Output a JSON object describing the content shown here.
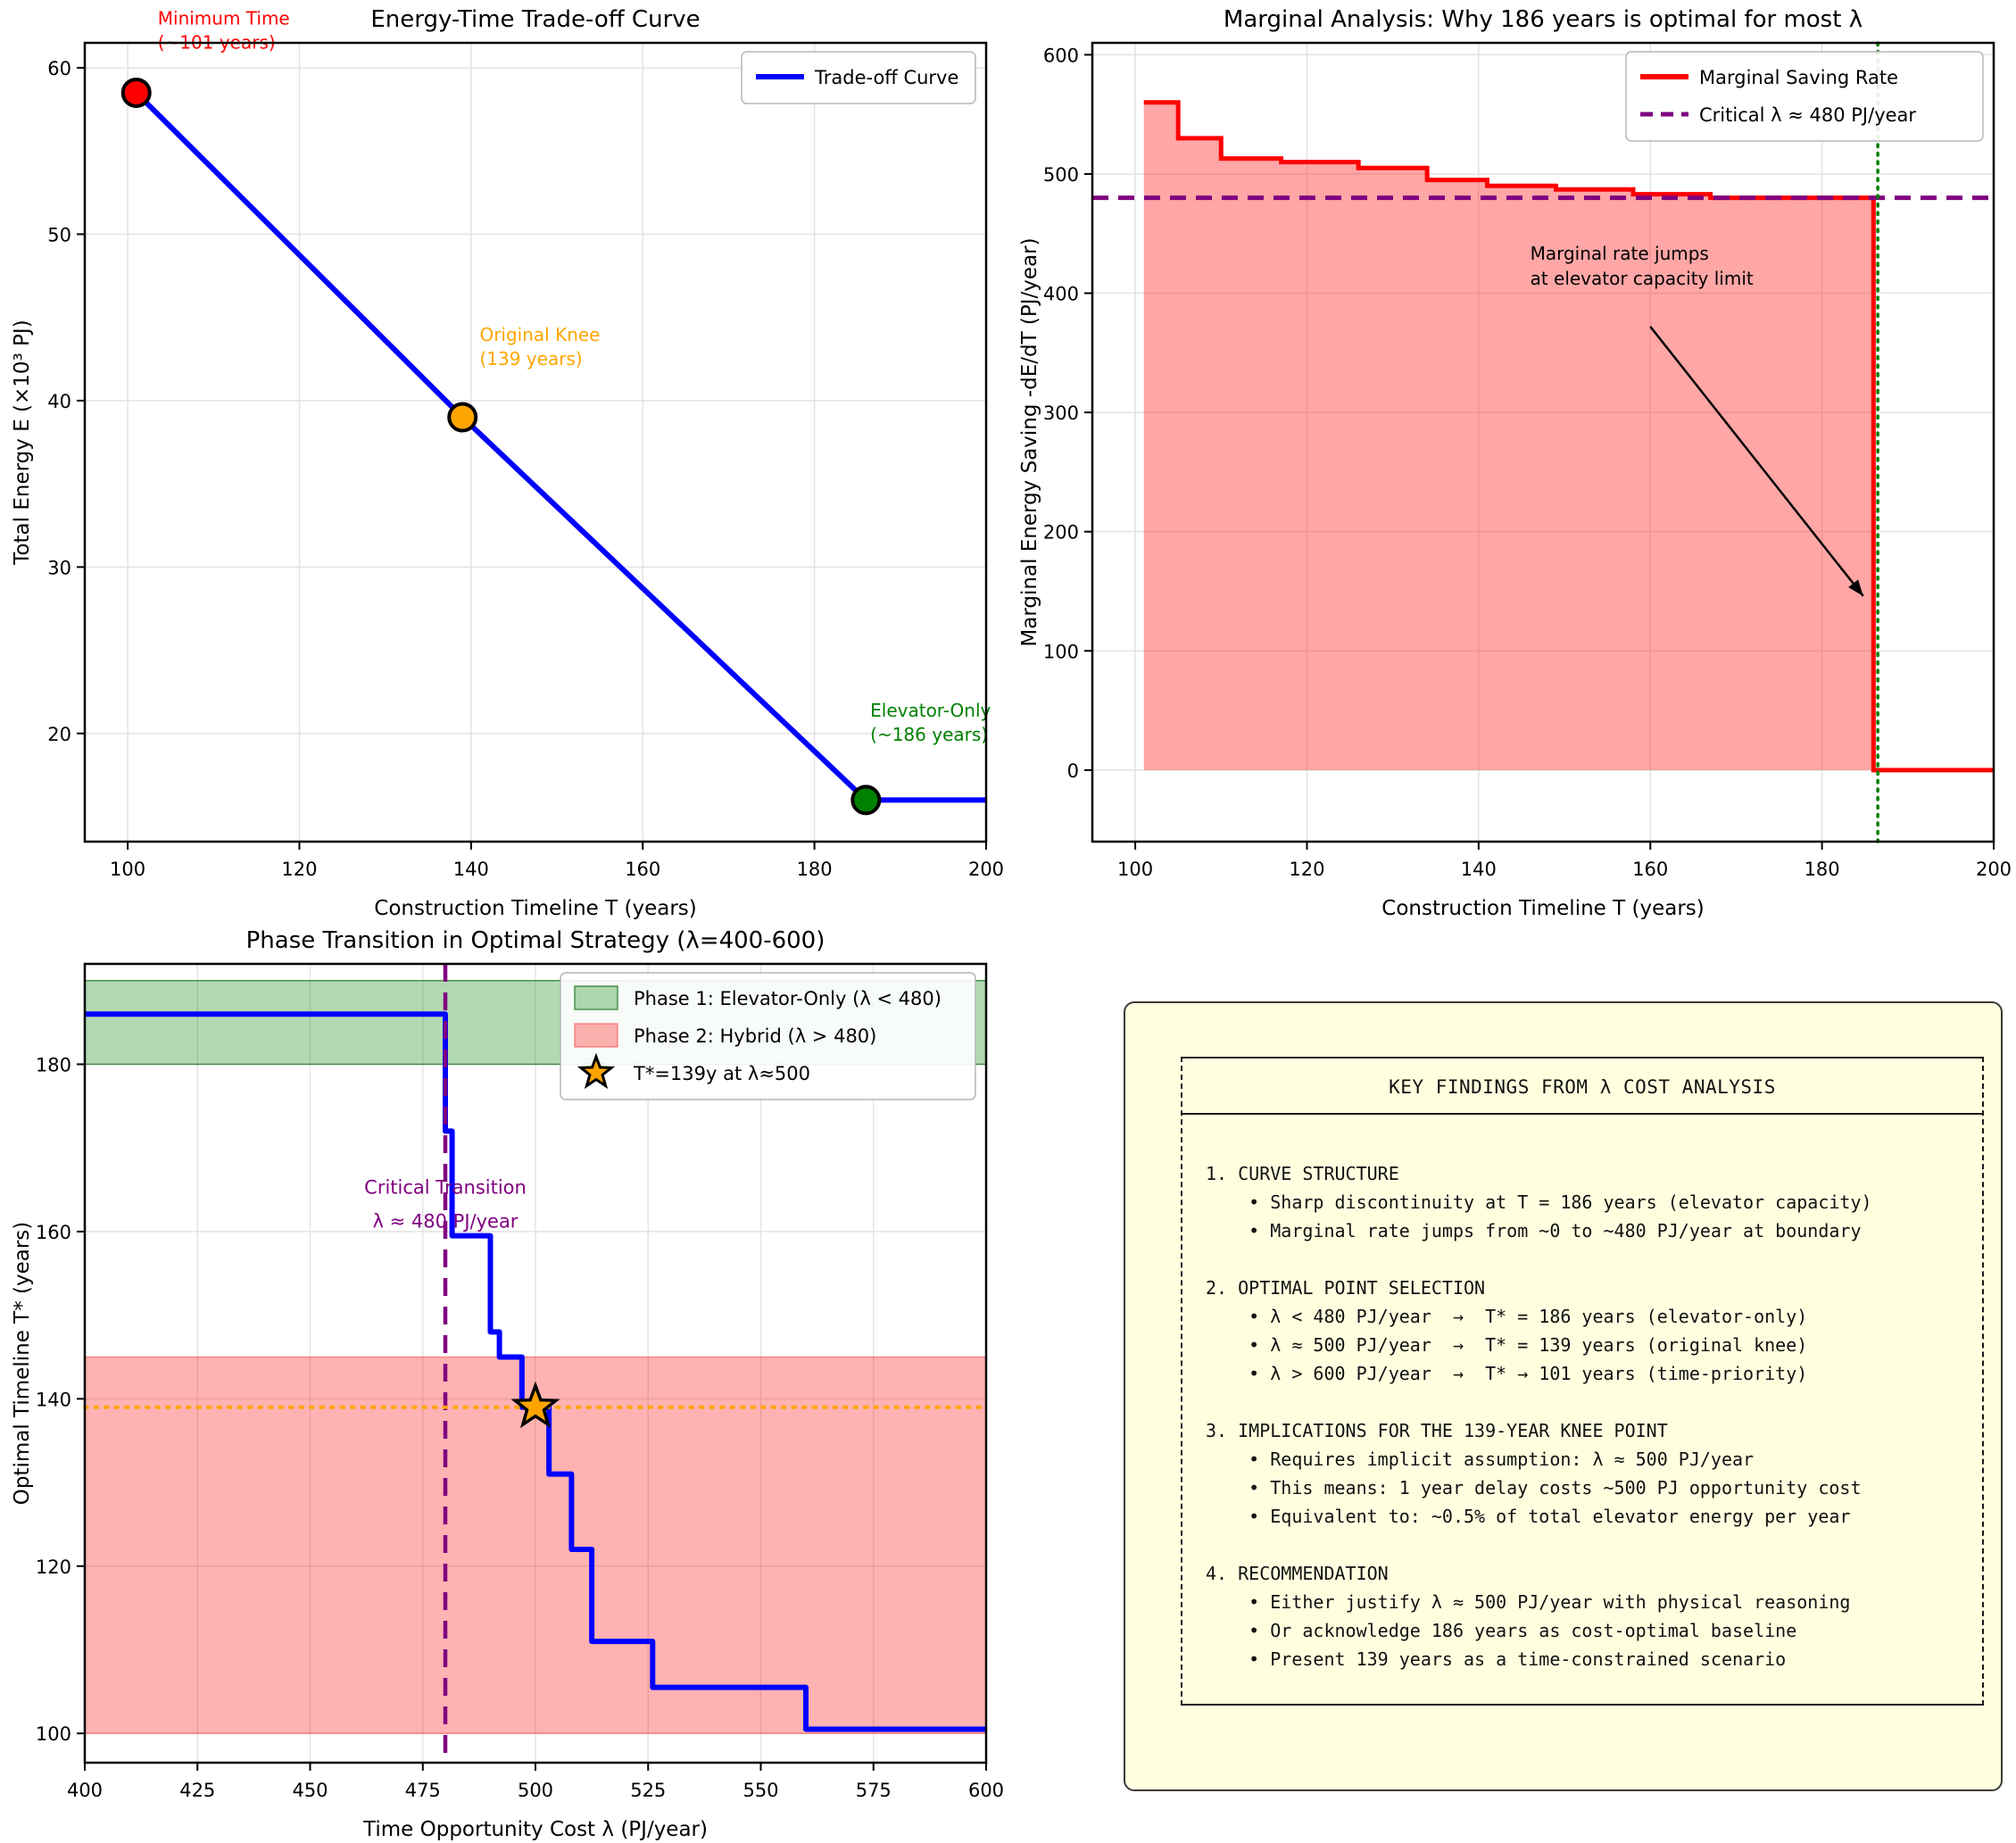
{
  "page": {
    "background": "#ffffff"
  },
  "findings": {
    "title": "KEY FINDINGS FROM λ COST ANALYSIS",
    "panel_bg": "#ffffe0",
    "body_lines": [
      "",
      "1. CURVE STRUCTURE",
      "    • Sharp discontinuity at T = 186 years (elevator capacity)",
      "    • Marginal rate jumps from ~0 to ~480 PJ/year at boundary",
      "",
      "2. OPTIMAL POINT SELECTION",
      "    • λ < 480 PJ/year  →  T* = 186 years (elevator-only)",
      "    • λ ≈ 500 PJ/year  →  T* = 139 years (original knee)",
      "    • λ > 600 PJ/year  →  T* → 101 years (time-priority)",
      "",
      "3. IMPLICATIONS FOR THE 139-YEAR KNEE POINT",
      "    • Requires implicit assumption: λ ≈ 500 PJ/year",
      "    • This means: 1 year delay costs ~500 PJ opportunity cost",
      "    • Equivalent to: ~0.5% of total elevator energy per year",
      "",
      "4. RECOMMENDATION",
      "    • Either justify λ ≈ 500 PJ/year with physical reasoning",
      "    • Or acknowledge 186 years as cost-optimal baseline",
      "    • Present 139 years as a time-constrained scenario"
    ]
  },
  "chart_data": [
    {
      "type": "line",
      "title": "Energy-Time Trade-off Curve",
      "xlabel": "Construction Timeline T (years)",
      "ylabel": "Total Energy E (×10³ PJ)",
      "xlim": [
        95,
        200
      ],
      "ylim": [
        13.5,
        61.5
      ],
      "xticks": [
        100,
        120,
        140,
        160,
        180,
        200
      ],
      "yticks": [
        20,
        30,
        40,
        50,
        60
      ],
      "grid": true,
      "series": [
        {
          "name": "Trade-off Curve",
          "color": "#0000ff",
          "points": [
            [
              101,
              58.5
            ],
            [
              139,
              39
            ],
            [
              186,
              16
            ],
            [
              200,
              16
            ]
          ]
        }
      ],
      "markers": [
        {
          "x": 101,
          "y": 58.5,
          "color": "#ff0000",
          "label": "Minimum Time\n(~101 years)",
          "label_at": [
            103.5,
            62.6
          ]
        },
        {
          "x": 139,
          "y": 39,
          "color": "#ffa500",
          "label": "Original Knee\n(139 years)",
          "label_at": [
            141,
            43.6
          ]
        },
        {
          "x": 186,
          "y": 16,
          "color": "#008000",
          "label": "Elevator-Only\n(~186 years)",
          "label_at": [
            186.5,
            21.0
          ]
        }
      ],
      "legend": [
        {
          "kind": "line",
          "color": "#0000ff",
          "label": "Trade-off Curve"
        }
      ]
    },
    {
      "type": "step-area",
      "title": "Marginal Analysis: Why 186 years is optimal for most λ",
      "xlabel": "Construction Timeline T (years)",
      "ylabel": "Marginal Energy Saving -dE/dT (PJ/year)",
      "xlim": [
        95,
        200
      ],
      "ylim": [
        -60,
        610
      ],
      "xticks": [
        100,
        120,
        140,
        160,
        180,
        200
      ],
      "yticks": [
        0,
        100,
        200,
        300,
        400,
        500,
        600
      ],
      "grid": true,
      "step_color": "#ff0000",
      "fill_color": "rgba(255,0,0,0.35)",
      "steps": [
        {
          "from": 101,
          "to": 105,
          "rate": 560
        },
        {
          "from": 105,
          "to": 110,
          "rate": 530
        },
        {
          "from": 110,
          "to": 117,
          "rate": 513
        },
        {
          "from": 117,
          "to": 126,
          "rate": 510
        },
        {
          "from": 126,
          "to": 134,
          "rate": 505
        },
        {
          "from": 134,
          "to": 141,
          "rate": 495
        },
        {
          "from": 141,
          "to": 149,
          "rate": 490
        },
        {
          "from": 149,
          "to": 158,
          "rate": 487
        },
        {
          "from": 158,
          "to": 167,
          "rate": 483
        },
        {
          "from": 167,
          "to": 186,
          "rate": 480
        },
        {
          "from": 186,
          "to": 200,
          "rate": 0
        }
      ],
      "critical_lambda": {
        "value": 480,
        "color": "#800080"
      },
      "capacity_limit": {
        "t": 186.5,
        "color": "#008000"
      },
      "annotation": {
        "lines": [
          "Marginal rate jumps",
          "at elevator capacity limit"
        ],
        "text_at": [
          146,
          428
        ],
        "arrow_from": [
          160,
          372
        ],
        "arrow_to": [
          184.8,
          146
        ]
      },
      "legend": [
        {
          "kind": "line",
          "color": "#ff0000",
          "label": "Marginal Saving Rate"
        },
        {
          "kind": "dash",
          "color": "#800080",
          "label": "Critical λ ≈ 480 PJ/year"
        }
      ]
    },
    {
      "type": "step",
      "title": "Phase Transition in Optimal Strategy (λ=400-600)",
      "xlabel": "Time Opportunity Cost λ (PJ/year)",
      "ylabel": "Optimal Timeline T* (years)",
      "xlim": [
        400,
        600
      ],
      "ylim": [
        96.5,
        192
      ],
      "xticks": [
        400,
        425,
        450,
        475,
        500,
        525,
        550,
        575,
        600
      ],
      "yticks": [
        100,
        120,
        140,
        160,
        180
      ],
      "grid": true,
      "line_color": "#0000ff",
      "steps": [
        {
          "from": 400,
          "to": 480,
          "tstar": 186
        },
        {
          "from": 480,
          "to": 481.5,
          "tstar": 172
        },
        {
          "from": 481.5,
          "to": 490,
          "tstar": 159.5
        },
        {
          "from": 490,
          "to": 492,
          "tstar": 148
        },
        {
          "from": 492,
          "to": 497,
          "tstar": 145
        },
        {
          "from": 497,
          "to": 503,
          "tstar": 139
        },
        {
          "from": 503,
          "to": 508,
          "tstar": 131
        },
        {
          "from": 508,
          "to": 512.5,
          "tstar": 122
        },
        {
          "from": 512.5,
          "to": 526,
          "tstar": 111
        },
        {
          "from": 526,
          "to": 560,
          "tstar": 105.5
        },
        {
          "from": 560,
          "to": 600,
          "tstar": 100.5
        }
      ],
      "bands": [
        {
          "from": 180,
          "to": 190,
          "fill": "rgba(0,128,0,0.3)",
          "edge": "#4a8f4a",
          "label": "Phase 1: Elevator-Only (λ < 480)"
        },
        {
          "from": 100,
          "to": 145,
          "fill": "rgba(255,0,0,0.3)",
          "edge": "rgba(255,80,80,0.6)",
          "label": "Phase 2: Hybrid (λ > 480)"
        }
      ],
      "critical_vline": {
        "value": 480,
        "color": "#800080"
      },
      "knee_hline": {
        "value": 139,
        "color": "#ffa500"
      },
      "star": {
        "x": 500,
        "y": 139,
        "fill": "#ffa500",
        "edge": "#000000",
        "label": "T*=139y at λ≈500"
      },
      "annotation": {
        "lines": [
          "Critical Transition",
          "λ ≈ 480 PJ/year"
        ],
        "at": [
          480,
          164.5
        ],
        "color": "#800080"
      }
    }
  ]
}
